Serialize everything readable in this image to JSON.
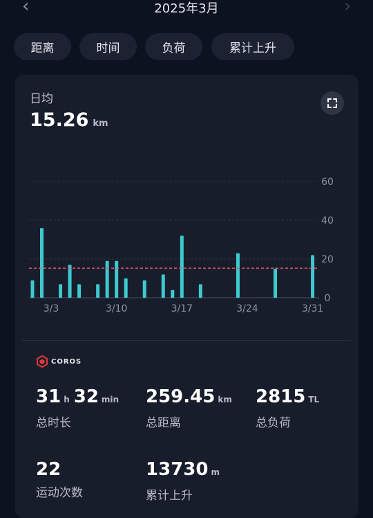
{
  "header": {
    "title": "2025年3月",
    "prev_icon": "‹",
    "next_icon": "›"
  },
  "tabs": [
    {
      "label": "距离",
      "active": true
    },
    {
      "label": "时间",
      "active": false
    },
    {
      "label": "负荷",
      "active": false
    },
    {
      "label": "累计上升",
      "active": false
    }
  ],
  "summary": {
    "label": "日均",
    "value": "15.26",
    "unit": "km"
  },
  "icons": {
    "expand": "expand-icon",
    "brand": "coros-logo-icon"
  },
  "brand": {
    "name": "COROS"
  },
  "colors": {
    "accent": "#3aa0ff",
    "bar": "#3ec9cf",
    "avg_line": "#e0566a",
    "background": "#0c1220",
    "card": "#181d2b"
  },
  "chart_data": {
    "type": "bar",
    "days": [
      1,
      2,
      3,
      4,
      5,
      6,
      7,
      8,
      9,
      10,
      11,
      12,
      13,
      14,
      15,
      16,
      17,
      18,
      19,
      20,
      21,
      22,
      23,
      24,
      25,
      26,
      27,
      28,
      29,
      30,
      31
    ],
    "values": [
      9,
      36,
      0,
      7,
      17,
      7,
      0,
      7,
      19,
      19,
      10,
      0,
      9,
      0,
      12,
      4,
      32,
      0,
      7,
      0,
      0,
      0,
      23,
      0,
      0,
      0,
      15,
      0,
      0,
      0,
      22
    ],
    "x_ticks": [
      {
        "day": 3,
        "label": "3/3"
      },
      {
        "day": 10,
        "label": "3/10"
      },
      {
        "day": 17,
        "label": "3/17"
      },
      {
        "day": 24,
        "label": "3/24"
      },
      {
        "day": 31,
        "label": "3/31"
      }
    ],
    "y_ticks": [
      0,
      20,
      40,
      60
    ],
    "ylim": [
      0,
      60
    ],
    "average": 15.26,
    "grid": true
  },
  "stats": [
    {
      "parts": [
        {
          "v": "31",
          "u": "h"
        },
        {
          "v": "32",
          "u": "min"
        }
      ],
      "label": "总时长"
    },
    {
      "parts": [
        {
          "v": "259.45",
          "u": "km"
        }
      ],
      "label": "总距离"
    },
    {
      "parts": [
        {
          "v": "2815",
          "u": "TL"
        }
      ],
      "label": "总负荷"
    },
    {
      "parts": [
        {
          "v": "22",
          "u": ""
        }
      ],
      "label": "运动次数"
    },
    {
      "parts": [
        {
          "v": "13730",
          "u": "m"
        }
      ],
      "label": "累计上升"
    }
  ]
}
